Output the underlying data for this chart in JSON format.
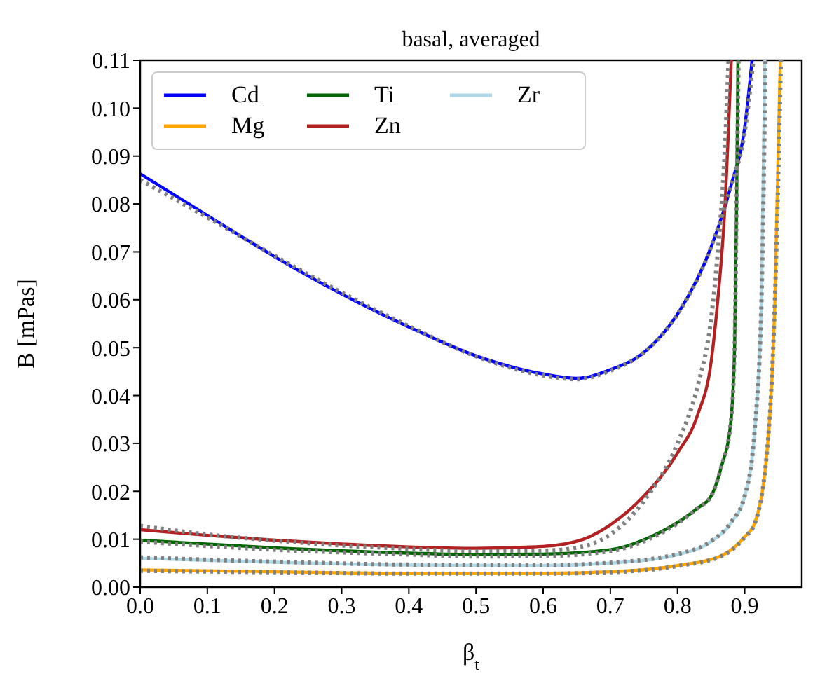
{
  "chart_data": {
    "type": "line",
    "title": "basal, averaged",
    "xlabel": "β$_{t}$",
    "ylabel": "B [mPas]",
    "xlim": [
      0,
      0.985
    ],
    "ylim": [
      0,
      0.11
    ],
    "xticks": [
      {
        "value": 0,
        "label": "0.0"
      },
      0.1,
      0.2,
      0.3,
      0.4,
      0.5,
      0.6,
      0.7,
      0.8,
      0.9
    ],
    "yticks": [
      {
        "value": 0,
        "label": "0.00"
      },
      0.01,
      0.02,
      0.03,
      0.04,
      0.05,
      0.06,
      0.07,
      0.08,
      0.09,
      {
        "value": 0.1,
        "label": "0.10"
      },
      0.11
    ],
    "grid": false,
    "legend": "top left",
    "marker": "none",
    "series": [
      {
        "name": "Cd",
        "color": "#0000ff",
        "line_style": "solid",
        "x": [
          0,
          0.1,
          0.2,
          0.3,
          0.4,
          0.5,
          0.6,
          0.65,
          0.7,
          0.75,
          0.8,
          0.85,
          0.88,
          0.9,
          0.911
        ],
        "values": [
          0.0863,
          0.0776,
          0.069,
          0.0612,
          0.0543,
          0.0483,
          0.0445,
          0.0436,
          0.0454,
          0.049,
          0.057,
          0.071,
          0.084,
          0.096,
          0.11
        ]
      },
      {
        "name": "Mg",
        "color": "#ffa500",
        "line_style": "solid",
        "x": [
          0,
          0.2,
          0.4,
          0.6,
          0.7,
          0.8,
          0.866,
          0.9,
          0.915,
          0.936,
          0.945,
          0.953
        ],
        "values": [
          0.0036,
          0.0032,
          0.0029,
          0.0029,
          0.0032,
          0.0045,
          0.0066,
          0.0105,
          0.0134,
          0.033,
          0.06,
          0.11
        ]
      },
      {
        "name": "Ti",
        "color": "#006400",
        "line_style": "solid",
        "x": [
          0,
          0.2,
          0.4,
          0.5,
          0.6,
          0.7,
          0.76,
          0.8,
          0.83,
          0.85,
          0.865,
          0.879,
          0.885,
          0.888,
          0.89
        ],
        "values": [
          0.0098,
          0.0082,
          0.0071,
          0.0068,
          0.0069,
          0.0078,
          0.0105,
          0.0135,
          0.0165,
          0.019,
          0.025,
          0.034,
          0.05,
          0.08,
          0.11
        ]
      },
      {
        "name": "Zn",
        "color": "#b22222",
        "line_style": "solid",
        "x": [
          0,
          0.1,
          0.2,
          0.3,
          0.4,
          0.5,
          0.6,
          0.66,
          0.7,
          0.75,
          0.8,
          0.83,
          0.85,
          0.86,
          0.87,
          0.88
        ],
        "values": [
          0.012,
          0.0108,
          0.0098,
          0.009,
          0.0084,
          0.0081,
          0.0085,
          0.01,
          0.013,
          0.019,
          0.028,
          0.036,
          0.047,
          0.06,
          0.078,
          0.11
        ]
      },
      {
        "name": "Zr",
        "color": "#add8e6",
        "line_style": "solid",
        "x": [
          0,
          0.2,
          0.4,
          0.6,
          0.7,
          0.8,
          0.85,
          0.88,
          0.9,
          0.915,
          0.925,
          0.93
        ],
        "values": [
          0.006,
          0.0052,
          0.0046,
          0.0045,
          0.005,
          0.0068,
          0.0095,
          0.0135,
          0.019,
          0.033,
          0.06,
          0.11
        ]
      },
      {
        "color": "#808080",
        "line_style": "dotted",
        "x": [
          0,
          0.1,
          0.2,
          0.3,
          0.4,
          0.5,
          0.6,
          0.65,
          0.7,
          0.75,
          0.8,
          0.85,
          0.88,
          0.9,
          0.913
        ],
        "values": [
          0.085,
          0.0772,
          0.0692,
          0.0615,
          0.0545,
          0.0482,
          0.0442,
          0.0434,
          0.0452,
          0.049,
          0.057,
          0.071,
          0.084,
          0.095,
          0.11
        ]
      },
      {
        "color": "#808080",
        "line_style": "dotted",
        "x": [
          0,
          0.2,
          0.4,
          0.6,
          0.7,
          0.8,
          0.866,
          0.9,
          0.915,
          0.936,
          0.945,
          0.954
        ],
        "values": [
          0.0034,
          0.0031,
          0.0028,
          0.0028,
          0.0031,
          0.0044,
          0.0065,
          0.0104,
          0.0133,
          0.033,
          0.06,
          0.11
        ]
      },
      {
        "color": "#808080",
        "line_style": "dotted",
        "x": [
          0,
          0.2,
          0.4,
          0.5,
          0.6,
          0.7,
          0.76,
          0.8,
          0.83,
          0.85,
          0.865,
          0.879,
          0.885,
          0.888,
          0.891
        ],
        "values": [
          0.0095,
          0.0078,
          0.0068,
          0.0064,
          0.0065,
          0.0075,
          0.0102,
          0.0133,
          0.0165,
          0.019,
          0.025,
          0.034,
          0.05,
          0.08,
          0.11
        ]
      },
      {
        "color": "#808080",
        "line_style": "dotted",
        "x": [
          0,
          0.1,
          0.2,
          0.3,
          0.4,
          0.5,
          0.6,
          0.66,
          0.7,
          0.75,
          0.8,
          0.83,
          0.85,
          0.86,
          0.87,
          0.876
        ],
        "values": [
          0.0128,
          0.011,
          0.0097,
          0.0087,
          0.008,
          0.0075,
          0.0076,
          0.0085,
          0.011,
          0.018,
          0.03,
          0.042,
          0.056,
          0.07,
          0.09,
          0.11
        ]
      },
      {
        "color": "#808080",
        "line_style": "dotted",
        "x": [
          0,
          0.2,
          0.4,
          0.6,
          0.7,
          0.8,
          0.85,
          0.88,
          0.9,
          0.915,
          0.925,
          0.931
        ],
        "values": [
          0.0062,
          0.0053,
          0.0047,
          0.0046,
          0.0051,
          0.0069,
          0.0096,
          0.0136,
          0.019,
          0.033,
          0.06,
          0.11
        ]
      }
    ]
  }
}
